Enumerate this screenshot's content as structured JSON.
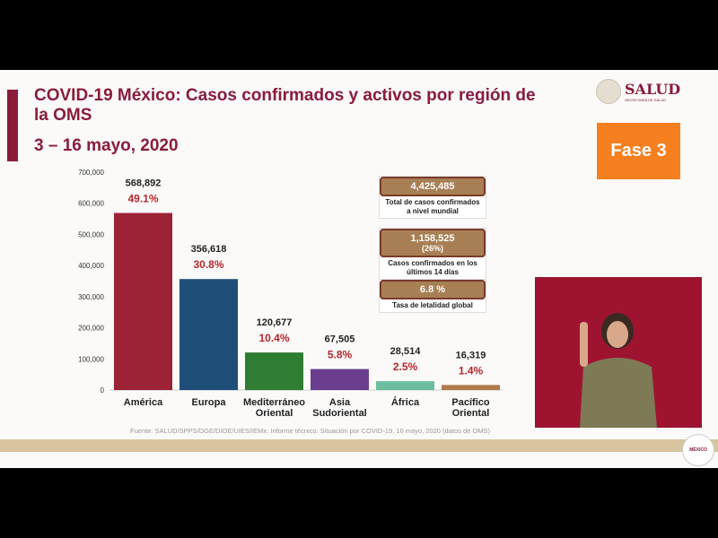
{
  "header": {
    "title": "COVID-19 México: Casos confirmados y activos por región de la OMS",
    "subtitle": "3 – 16 mayo, 2020",
    "logo": "SALUD",
    "logo_sub": "SECRETARÍA DE SALUD",
    "phase": "Fase 3"
  },
  "stats": [
    {
      "value": "4,425,485",
      "label": "Total de casos confirmados a nivel mundial"
    },
    {
      "value": "1,158,525",
      "value2": "(26%)",
      "label": "Casos confirmados en los últimos 14 días"
    },
    {
      "value": "6.8 %",
      "label": "Tasa de letalidad global"
    }
  ],
  "source": "Fuente: SALUD/SPPS/DGE/DIOE/UIES/IEMx: Informe técnico: Situación por COVID-19, 16 mayo, 2020 (datos de OMS)",
  "footer_seal": "MÉXICO",
  "chart_data": {
    "type": "bar",
    "categories": [
      [
        "América"
      ],
      [
        "Europa"
      ],
      [
        "Mediterráneo",
        "Oriental"
      ],
      [
        "Asia",
        "Sudoriental"
      ],
      [
        "África"
      ],
      [
        "Pacífico",
        "Oriental"
      ]
    ],
    "values": [
      568892,
      356618,
      120677,
      67505,
      28514,
      16319
    ],
    "value_labels": [
      "568,892",
      "356,618",
      "120,677",
      "67,505",
      "28,514",
      "16,319"
    ],
    "percent_labels": [
      "49.1%",
      "30.8%",
      "10.4%",
      "5.8%",
      "2.5%",
      "1.4%"
    ],
    "colors": [
      "#9b2335",
      "#1f4e79",
      "#2e7d32",
      "#6a3d8f",
      "#6bbfa0",
      "#b07a4a"
    ],
    "yticks": [
      "0",
      "100,000",
      "200,000",
      "300,000",
      "400,000",
      "500,000",
      "600,000",
      "700,000"
    ],
    "ylim": [
      0,
      700000
    ],
    "grid": false
  }
}
